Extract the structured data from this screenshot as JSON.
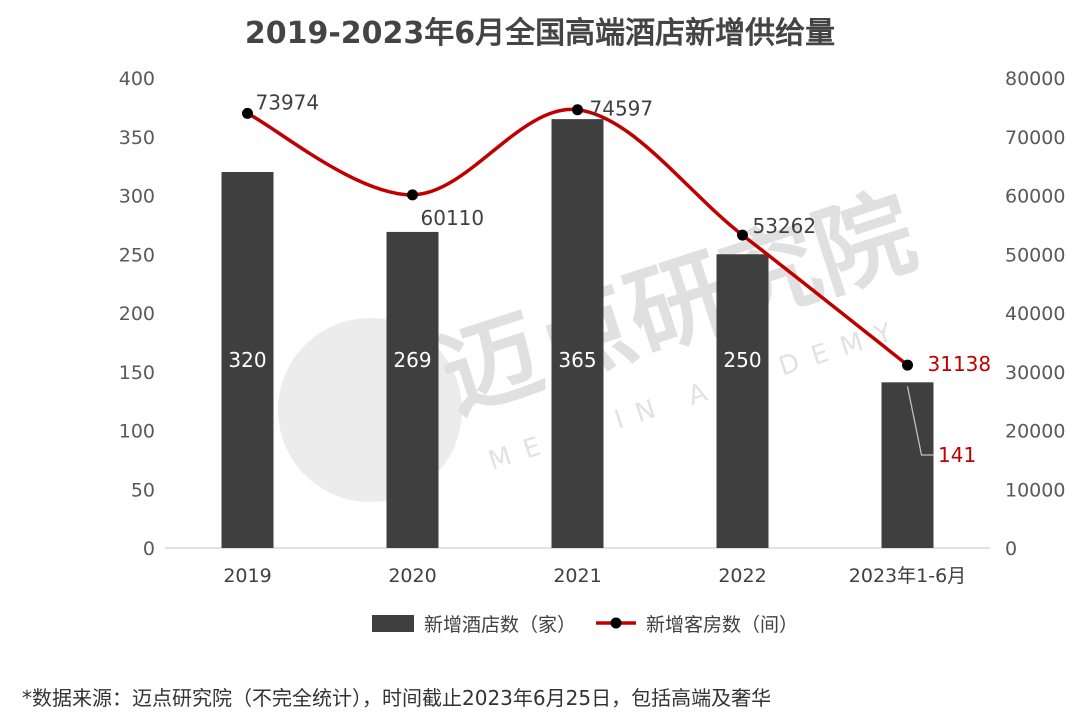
{
  "title": "2019-2023年6月全国高端酒店新增供给量",
  "source": "*数据来源：迈点研究院（不完全统计），时间截止2023年6月25日，包括高端及奢华",
  "watermark": {
    "main": "迈点研究院",
    "sub": "MEADIN ACADEMY"
  },
  "chart_data": {
    "type": "bar",
    "categories": [
      "2019",
      "2020",
      "2021",
      "2022",
      "2023年1-6月"
    ],
    "series": [
      {
        "name": "新增酒店数（家）",
        "type": "bar",
        "axis": "left",
        "values": [
          320,
          269,
          365,
          250,
          141
        ],
        "color": "#3f3f3f"
      },
      {
        "name": "新增客房数（间）",
        "type": "line",
        "axis": "right",
        "values": [
          73974,
          60110,
          74597,
          53262,
          31138
        ],
        "color": "#c00000",
        "smooth": true
      }
    ],
    "y_left": {
      "min": 0,
      "max": 400,
      "step": 50
    },
    "y_right": {
      "min": 0,
      "max": 80000,
      "step": 10000
    },
    "legend": "bottom",
    "grid": false,
    "highlight_color": "#c00000"
  }
}
